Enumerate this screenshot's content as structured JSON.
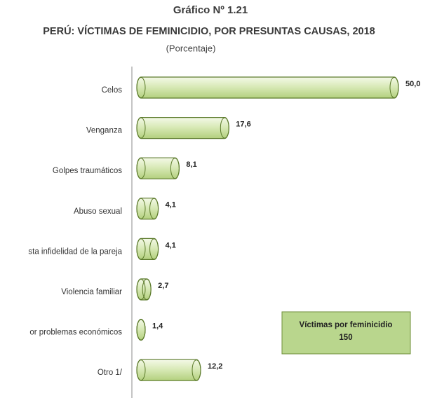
{
  "chart_data": {
    "type": "bar",
    "orientation": "horizontal",
    "title": "Gráfico Nº 1.21",
    "subtitle": "PERÚ: VÍCTIMAS DE FEMINICIDIO, POR PRESUNTAS CAUSAS, 2018",
    "unit_label": "(Porcentaje)",
    "categories": [
      "Celos",
      "Venganza",
      "Golpes traumáticos",
      "Abuso sexual",
      "sta infidelidad de la pareja",
      "Violencia familiar",
      "or problemas económicos",
      "Otro 1/"
    ],
    "values": [
      50.0,
      17.6,
      8.1,
      4.1,
      4.1,
      2.7,
      1.4,
      12.2
    ],
    "value_labels": [
      "50,0",
      "17,6",
      "8,1",
      "4,1",
      "4,1",
      "2,7",
      "1,4",
      "12,2"
    ],
    "color": "#d9eab8",
    "annotation": {
      "title": "Víctimas por feminicidio",
      "value": "150"
    }
  }
}
